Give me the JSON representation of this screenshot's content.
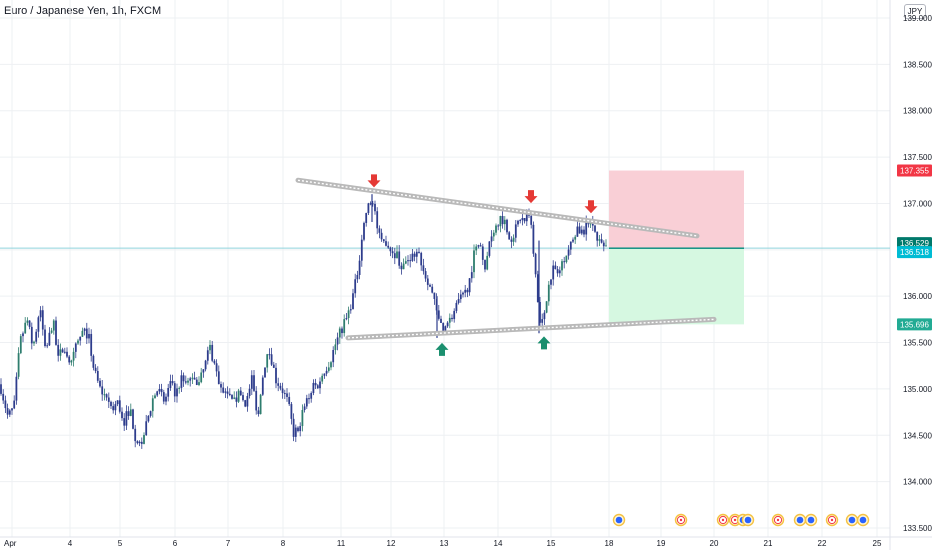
{
  "header": {
    "title": "Euro / Japanese Yen, 1h, FXCM",
    "currency_badge": "JPY"
  },
  "chart_data": {
    "type": "candlestick",
    "title": "Euro / Japanese Yen, 1h, FXCM",
    "ylim": [
      133.5,
      139.1
    ],
    "xlim": [
      0,
      930
    ],
    "grid": true,
    "x_ticks": [
      {
        "label": "Apr",
        "x": 12
      },
      {
        "label": "4",
        "x": 70
      },
      {
        "label": "5",
        "x": 120
      },
      {
        "label": "6",
        "x": 175
      },
      {
        "label": "7",
        "x": 228
      },
      {
        "label": "8",
        "x": 283
      },
      {
        "label": "11",
        "x": 341
      },
      {
        "label": "12",
        "x": 391
      },
      {
        "label": "13",
        "x": 444
      },
      {
        "label": "14",
        "x": 498
      },
      {
        "label": "15",
        "x": 551
      },
      {
        "label": "18",
        "x": 609
      },
      {
        "label": "19",
        "x": 661
      },
      {
        "label": "20",
        "x": 714
      },
      {
        "label": "21",
        "x": 768
      },
      {
        "label": "22",
        "x": 822
      },
      {
        "label": "25",
        "x": 877
      }
    ],
    "y_ticks": [
      {
        "label": "139.000",
        "value": 139.0
      },
      {
        "label": "138.500",
        "value": 138.5
      },
      {
        "label": "138.000",
        "value": 138.0
      },
      {
        "label": "137.500",
        "value": 137.5
      },
      {
        "label": "137.000",
        "value": 137.0
      },
      {
        "label": "136.500",
        "value": 136.5
      },
      {
        "label": "136.000",
        "value": 136.0
      },
      {
        "label": "135.500",
        "value": 135.5
      },
      {
        "label": "135.000",
        "value": 135.0
      },
      {
        "label": "134.500",
        "value": 134.5
      },
      {
        "label": "134.000",
        "value": 134.0
      },
      {
        "label": "133.500",
        "value": 133.5
      }
    ],
    "price_path": [
      [
        0,
        135.05
      ],
      [
        8,
        134.7
      ],
      [
        14,
        134.8
      ],
      [
        20,
        135.5
      ],
      [
        27,
        135.75
      ],
      [
        33,
        135.45
      ],
      [
        40,
        135.85
      ],
      [
        46,
        135.4
      ],
      [
        53,
        135.75
      ],
      [
        58,
        135.3
      ],
      [
        64,
        135.5
      ],
      [
        70,
        135.2
      ],
      [
        76,
        135.45
      ],
      [
        82,
        135.6
      ],
      [
        88,
        135.6
      ],
      [
        94,
        135.2
      ],
      [
        100,
        135.0
      ],
      [
        106,
        134.9
      ],
      [
        112,
        134.8
      ],
      [
        118,
        134.85
      ],
      [
        124,
        134.65
      ],
      [
        130,
        134.8
      ],
      [
        135,
        134.5
      ],
      [
        141,
        134.38
      ],
      [
        147,
        134.65
      ],
      [
        153,
        134.9
      ],
      [
        158,
        135.0
      ],
      [
        164,
        134.85
      ],
      [
        170,
        135.05
      ],
      [
        176,
        134.95
      ],
      [
        181,
        135.1
      ],
      [
        187,
        135.05
      ],
      [
        193,
        135.15
      ],
      [
        199,
        135.05
      ],
      [
        205,
        135.25
      ],
      [
        210,
        135.45
      ],
      [
        216,
        135.2
      ],
      [
        222,
        134.95
      ],
      [
        228,
        134.9
      ],
      [
        234,
        134.85
      ],
      [
        240,
        134.95
      ],
      [
        246,
        134.85
      ],
      [
        252,
        135.1
      ],
      [
        258,
        134.7
      ],
      [
        264,
        135.25
      ],
      [
        270,
        135.4
      ],
      [
        276,
        135.1
      ],
      [
        282,
        135.0
      ],
      [
        288,
        134.85
      ],
      [
        294,
        134.5
      ],
      [
        300,
        134.65
      ],
      [
        306,
        134.85
      ],
      [
        312,
        135.0
      ],
      [
        318,
        135.05
      ],
      [
        324,
        135.2
      ],
      [
        330,
        135.3
      ],
      [
        336,
        135.5
      ],
      [
        342,
        135.65
      ],
      [
        348,
        135.8
      ],
      [
        354,
        136.05
      ],
      [
        358,
        136.3
      ],
      [
        362,
        136.65
      ],
      [
        366,
        136.9
      ],
      [
        370,
        137.0
      ],
      [
        373,
        137.05
      ],
      [
        377,
        136.75
      ],
      [
        381,
        136.55
      ],
      [
        386,
        136.6
      ],
      [
        391,
        136.5
      ],
      [
        397,
        136.45
      ],
      [
        402,
        136.3
      ],
      [
        408,
        136.4
      ],
      [
        413,
        136.45
      ],
      [
        418,
        136.5
      ],
      [
        423,
        136.3
      ],
      [
        429,
        136.15
      ],
      [
        434,
        135.95
      ],
      [
        438,
        135.75
      ],
      [
        443,
        135.65
      ],
      [
        448,
        135.7
      ],
      [
        453,
        135.8
      ],
      [
        459,
        135.95
      ],
      [
        464,
        136.0
      ],
      [
        469,
        136.15
      ],
      [
        474,
        136.45
      ],
      [
        480,
        136.6
      ],
      [
        485,
        136.25
      ],
      [
        490,
        136.65
      ],
      [
        495,
        136.75
      ],
      [
        500,
        136.85
      ],
      [
        505,
        136.8
      ],
      [
        510,
        136.6
      ],
      [
        515,
        136.7
      ],
      [
        520,
        136.85
      ],
      [
        525,
        136.8
      ],
      [
        530,
        136.9
      ],
      [
        534,
        136.45
      ],
      [
        538,
        135.95
      ],
      [
        541,
        135.68
      ],
      [
        545,
        135.8
      ],
      [
        549,
        136.2
      ],
      [
        554,
        136.3
      ],
      [
        559,
        136.25
      ],
      [
        565,
        136.45
      ],
      [
        571,
        136.55
      ],
      [
        577,
        136.75
      ],
      [
        583,
        136.65
      ],
      [
        589,
        136.85
      ],
      [
        594,
        136.75
      ],
      [
        598,
        136.6
      ],
      [
        603,
        136.55
      ],
      [
        607,
        136.52
      ]
    ],
    "candle_overrides": [
      [
        437,
        135.55,
        136.0
      ],
      [
        539,
        135.6,
        136.6
      ],
      [
        372,
        136.8,
        137.1
      ]
    ],
    "resistance_line": {
      "from": [
        298,
        137.25
      ],
      "to": [
        697,
        136.65
      ]
    },
    "support_line": {
      "from": [
        348,
        135.55
      ],
      "to": [
        714,
        135.75
      ]
    },
    "tops": [
      [
        374,
        137.12
      ],
      [
        531,
        136.95
      ],
      [
        591,
        136.84
      ]
    ],
    "bottoms": [
      [
        442,
        135.55
      ],
      [
        544,
        135.62
      ]
    ],
    "position_box": {
      "x_start": 609,
      "x_end": 744,
      "entry": 136.518,
      "stop": 137.355,
      "target": 135.696
    },
    "price_labels": [
      {
        "text": "137.355",
        "value": 137.355,
        "color": "#f23645"
      },
      {
        "text": "136.529",
        "value": 136.529,
        "color": "#00796b"
      },
      {
        "text": "136.518",
        "value": 136.518,
        "color": "#00bcd4"
      },
      {
        "text": "135.696",
        "value": 135.696,
        "color": "#22ab94"
      }
    ],
    "event_markers": [
      {
        "x": 619,
        "kind": "blue"
      },
      {
        "x": 681,
        "kind": "red"
      },
      {
        "x": 723,
        "kind": "red"
      },
      {
        "x": 735,
        "kind": "red"
      },
      {
        "x": 743,
        "kind": "blue"
      },
      {
        "x": 748,
        "kind": "blue"
      },
      {
        "x": 778,
        "kind": "red"
      },
      {
        "x": 800,
        "kind": "blue"
      },
      {
        "x": 811,
        "kind": "blue"
      },
      {
        "x": 832,
        "kind": "red"
      },
      {
        "x": 852,
        "kind": "blue"
      },
      {
        "x": 863,
        "kind": "blue"
      }
    ]
  },
  "colors": {
    "candle": "#2d3c8c",
    "candle_up_accent": "#2e7d6e",
    "trend_line": "#b9b9b9",
    "arrow_down": "#e53935",
    "arrow_up": "#1a8f6e",
    "stop_zone": "#f9cfd6",
    "target_zone": "#d6f8e1",
    "grid": "#eef0f3"
  }
}
